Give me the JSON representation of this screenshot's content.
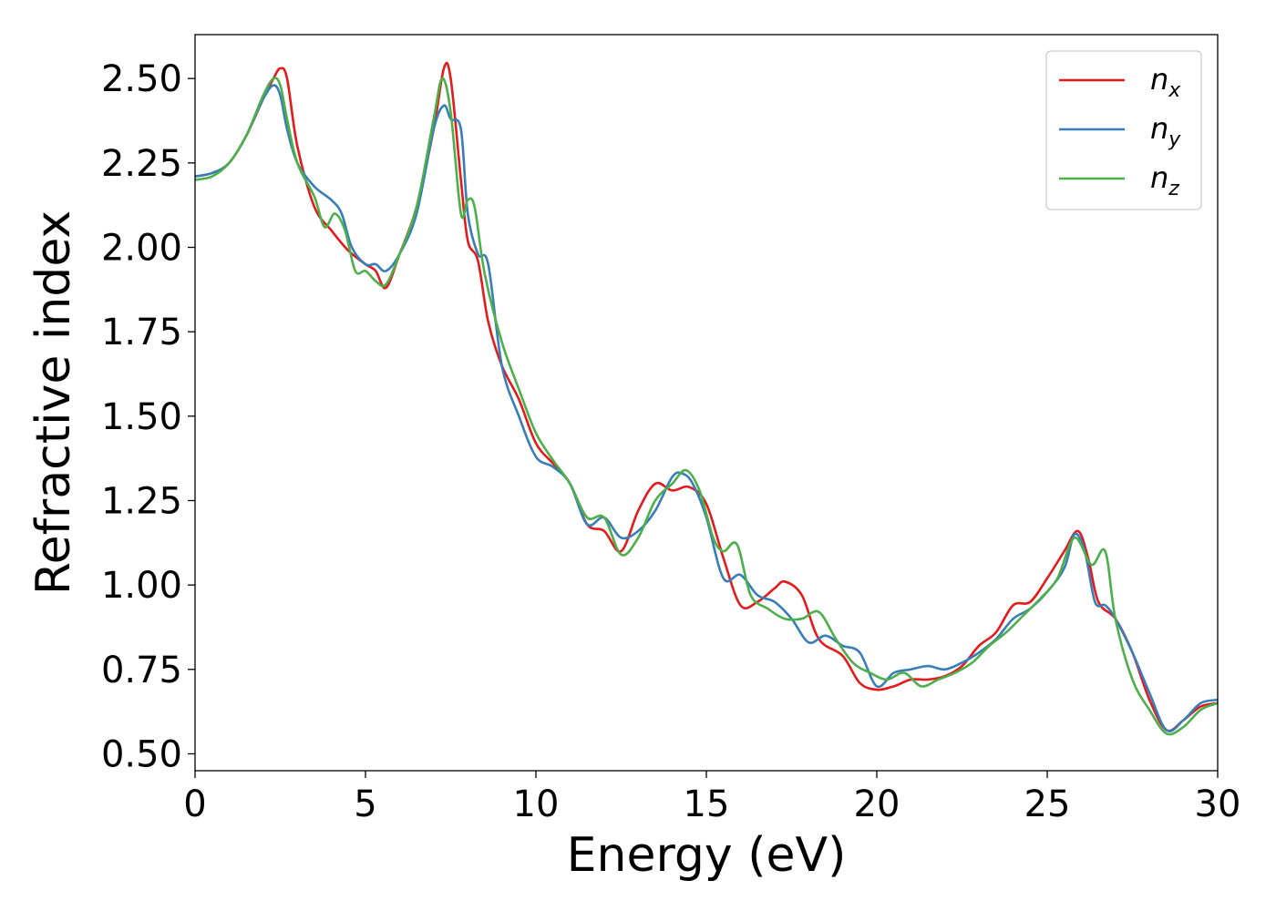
{
  "chart_data": {
    "type": "line",
    "title": "",
    "xlabel": "Energy (eV)",
    "ylabel": "Refractive index",
    "xlim": [
      0,
      30
    ],
    "ylim": [
      0.45,
      2.63
    ],
    "xticks": [
      0,
      5,
      10,
      15,
      20,
      25,
      30
    ],
    "xtick_labels": [
      "0",
      "5",
      "10",
      "15",
      "20",
      "25",
      "30"
    ],
    "yticks": [
      0.5,
      0.75,
      1.0,
      1.25,
      1.5,
      1.75,
      2.0,
      2.25,
      2.5
    ],
    "ytick_labels": [
      "0.50",
      "0.75",
      "1.00",
      "1.25",
      "1.50",
      "1.75",
      "2.00",
      "2.25",
      "2.50"
    ],
    "grid": false,
    "legend_position": "top-right",
    "series": [
      {
        "name": "n",
        "sub": "x",
        "color": "#e41a1c",
        "x": [
          0,
          0.5,
          1,
          1.5,
          2,
          2.3,
          2.5,
          2.7,
          3,
          3.5,
          4,
          4.5,
          5,
          5.3,
          5.6,
          6,
          6.5,
          7,
          7.3,
          7.5,
          7.8,
          8,
          8.3,
          8.6,
          9,
          9.5,
          10,
          10.5,
          11,
          11.5,
          12,
          12.5,
          13,
          13.5,
          14,
          14.5,
          15,
          15.5,
          16,
          16.5,
          17,
          17.3,
          17.8,
          18.3,
          19,
          19.5,
          20,
          20.5,
          21,
          21.5,
          22,
          22.5,
          23,
          23.5,
          24,
          24.5,
          25,
          25.5,
          25.9,
          26.2,
          26.5,
          27,
          27.5,
          28,
          28.5,
          29,
          29.5,
          30
        ],
        "y": [
          2.21,
          2.22,
          2.25,
          2.33,
          2.44,
          2.5,
          2.53,
          2.5,
          2.3,
          2.12,
          2.05,
          1.99,
          1.95,
          1.93,
          1.88,
          1.98,
          2.12,
          2.35,
          2.53,
          2.5,
          2.2,
          2.02,
          1.96,
          1.78,
          1.65,
          1.55,
          1.42,
          1.36,
          1.3,
          1.18,
          1.16,
          1.1,
          1.22,
          1.3,
          1.28,
          1.29,
          1.24,
          1.08,
          0.94,
          0.95,
          0.99,
          1.01,
          0.97,
          0.84,
          0.79,
          0.71,
          0.69,
          0.7,
          0.72,
          0.72,
          0.73,
          0.76,
          0.82,
          0.86,
          0.94,
          0.95,
          1.02,
          1.1,
          1.16,
          1.08,
          0.95,
          0.9,
          0.8,
          0.66,
          0.57,
          0.6,
          0.64,
          0.65
        ]
      },
      {
        "name": "n",
        "sub": "y",
        "color": "#377eb8",
        "x": [
          0,
          0.5,
          1,
          1.5,
          2,
          2.3,
          2.5,
          2.7,
          3,
          3.5,
          4,
          4.3,
          4.6,
          5,
          5.3,
          5.6,
          6,
          6.5,
          7,
          7.3,
          7.5,
          7.8,
          8,
          8.3,
          8.6,
          9,
          9.5,
          10,
          10.5,
          11,
          11.5,
          12,
          12.5,
          13,
          13.5,
          14,
          14.3,
          14.6,
          15,
          15.5,
          16,
          16.5,
          17,
          17.5,
          18,
          18.5,
          19,
          19.5,
          20,
          20.5,
          21,
          21.5,
          22,
          22.5,
          23,
          23.5,
          24,
          24.5,
          25,
          25.5,
          25.8,
          26.1,
          26.4,
          26.7,
          27,
          27.5,
          28,
          28.5,
          29,
          29.5,
          30
        ],
        "y": [
          2.21,
          2.22,
          2.25,
          2.33,
          2.44,
          2.48,
          2.45,
          2.35,
          2.25,
          2.18,
          2.14,
          2.1,
          2.0,
          1.95,
          1.95,
          1.93,
          1.98,
          2.1,
          2.35,
          2.42,
          2.38,
          2.35,
          2.1,
          1.98,
          1.95,
          1.65,
          1.5,
          1.38,
          1.35,
          1.3,
          1.18,
          1.2,
          1.14,
          1.16,
          1.22,
          1.32,
          1.33,
          1.3,
          1.2,
          1.02,
          1.03,
          0.97,
          0.95,
          0.9,
          0.83,
          0.85,
          0.82,
          0.8,
          0.7,
          0.74,
          0.75,
          0.76,
          0.75,
          0.77,
          0.8,
          0.84,
          0.9,
          0.93,
          0.98,
          1.05,
          1.15,
          1.1,
          0.95,
          0.94,
          0.9,
          0.8,
          0.68,
          0.57,
          0.6,
          0.65,
          0.66
        ]
      },
      {
        "name": "n",
        "sub": "z",
        "color": "#4daf4a",
        "x": [
          0,
          0.5,
          1,
          1.5,
          2,
          2.3,
          2.5,
          2.7,
          3,
          3.5,
          3.8,
          4.1,
          4.4,
          4.7,
          5,
          5.3,
          5.6,
          6,
          6.5,
          7,
          7.25,
          7.5,
          7.8,
          8,
          8.2,
          8.5,
          9,
          9.5,
          10,
          10.5,
          11,
          11.5,
          12,
          12.5,
          13,
          13.5,
          14,
          14.4,
          14.8,
          15.2,
          15.5,
          15.9,
          16.3,
          16.8,
          17.3,
          17.8,
          18.3,
          18.8,
          19.3,
          19.8,
          20.3,
          20.8,
          21.3,
          21.8,
          22.3,
          22.8,
          23.3,
          23.8,
          24.3,
          24.8,
          25.3,
          25.8,
          26.3,
          26.7,
          27,
          27.5,
          28,
          28.5,
          29,
          29.5,
          30
        ],
        "y": [
          2.2,
          2.21,
          2.25,
          2.33,
          2.45,
          2.5,
          2.48,
          2.38,
          2.25,
          2.15,
          2.06,
          2.1,
          2.05,
          1.93,
          1.93,
          1.9,
          1.89,
          1.98,
          2.12,
          2.38,
          2.5,
          2.4,
          2.1,
          2.14,
          2.12,
          1.92,
          1.72,
          1.58,
          1.45,
          1.37,
          1.3,
          1.2,
          1.2,
          1.09,
          1.14,
          1.25,
          1.3,
          1.34,
          1.28,
          1.14,
          1.1,
          1.12,
          0.97,
          0.93,
          0.9,
          0.9,
          0.92,
          0.84,
          0.77,
          0.74,
          0.72,
          0.74,
          0.7,
          0.72,
          0.74,
          0.77,
          0.82,
          0.86,
          0.91,
          0.96,
          1.02,
          1.14,
          1.06,
          1.1,
          0.9,
          0.72,
          0.63,
          0.56,
          0.58,
          0.63,
          0.65
        ]
      }
    ]
  }
}
